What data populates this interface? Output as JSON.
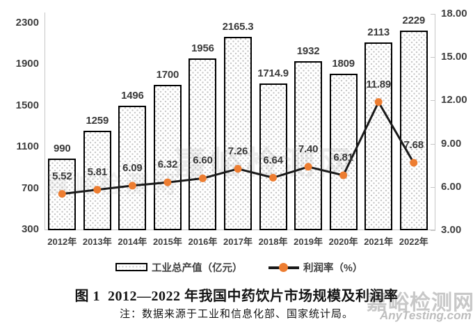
{
  "chart_data": {
    "type": "bar+line",
    "categories": [
      "2012年",
      "2013年",
      "2014年",
      "2015年",
      "2016年",
      "2017年",
      "2018年",
      "2019年",
      "2020年",
      "2021年",
      "2022年"
    ],
    "series": [
      {
        "name": "工业总产值（亿元）",
        "type": "bar",
        "axis": "left",
        "values": [
          990,
          1259,
          1496,
          1700,
          1956,
          2165.3,
          1714.9,
          1932,
          1809,
          2113,
          2229
        ],
        "data_labels": [
          "990",
          "1259",
          "1496",
          "1700",
          "1956",
          "2165.3",
          "1714.9",
          "1932",
          "1809",
          "2113",
          "2229"
        ]
      },
      {
        "name": "利润率（%）",
        "type": "line",
        "axis": "right",
        "values": [
          5.52,
          5.81,
          6.09,
          6.32,
          6.6,
          7.26,
          6.64,
          7.4,
          6.81,
          11.89,
          7.68
        ],
        "data_labels": [
          "5.52",
          "5.81",
          "6.09",
          "6.32",
          "6.60",
          "7.26",
          "6.64",
          "7.40",
          "6.81",
          "11.89",
          "7.68"
        ]
      }
    ],
    "left_axis": {
      "min": 300,
      "max": 2300,
      "step": 400,
      "tick_labels": [
        "300",
        "700",
        "1100",
        "1500",
        "1900",
        "2300"
      ]
    },
    "right_axis": {
      "min": 3,
      "max": 18,
      "step": 3,
      "tick_labels": [
        "3.00",
        "6.00",
        "9.00",
        "12.00",
        "15.00",
        "18.00"
      ]
    },
    "grid": "off",
    "legend_position": "bottom",
    "title": "图 1  2012—2022 年我国中药饮片市场规模及利润率"
  },
  "legend": {
    "bar_label": "工业总产值（亿元）",
    "line_label": "利润率（%）"
  },
  "caption": {
    "title": "图 1  2012—2022 年我国中药饮片市场规模及利润率",
    "note": "注：数据来源于工业和信息化部、国家统计局。"
  },
  "watermark": {
    "cn": "嘉峪检测网",
    "en": "AnyTesting.com"
  },
  "colors": {
    "marker_orange": "#ED7D31",
    "line_black": "#1a1a1a",
    "bar_border": "#000000",
    "label_dark": "#3f3f3f",
    "axis_gray": "#c6c6c6",
    "watermark_gray": "#c8c8c8"
  }
}
